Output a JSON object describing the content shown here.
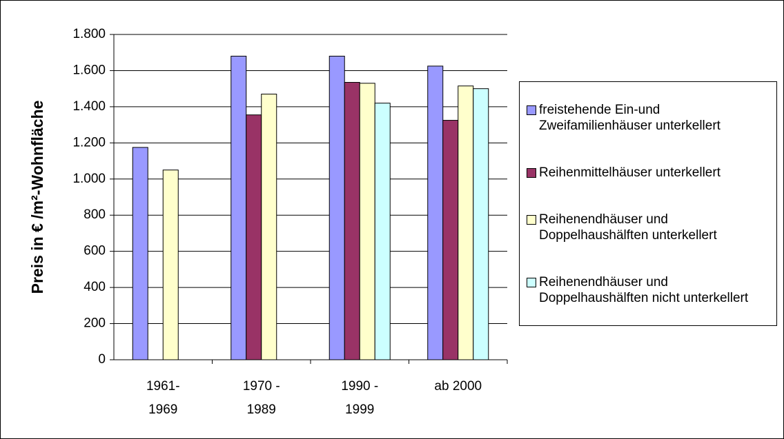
{
  "chart_data": {
    "type": "bar",
    "y_label": "Preis in € /m²-Wohnfläche",
    "categories": [
      "1961-1969",
      "1970 - 1989",
      "1990 - 1999",
      "ab 2000"
    ],
    "series": [
      {
        "name": "freistehende Ein-und Zweifamilienhäuser unterkellert",
        "color": "#9999ff",
        "values": [
          1175,
          1680,
          1680,
          1625
        ]
      },
      {
        "name": "Reihenmittelhäuser unterkellert",
        "color": "#993366",
        "values": [
          null,
          1355,
          1535,
          1325
        ]
      },
      {
        "name": "Reihenendhäuser und Doppelhaushälften unterkellert",
        "color": "#ffffcc",
        "values": [
          1050,
          1470,
          1530,
          1515
        ]
      },
      {
        "name": "Reihenendhäuser und Doppelhaushälften nicht unterkellert",
        "color": "#ccffff",
        "values": [
          null,
          null,
          1420,
          1500
        ]
      }
    ],
    "ylim": [
      0,
      1800
    ],
    "yticks": [
      0,
      200,
      400,
      600,
      800,
      {
        "value": 1000,
        "label": "1.000"
      },
      {
        "value": 1200,
        "label": "1.200"
      },
      {
        "value": 1400,
        "label": "1.400"
      },
      {
        "value": 1600,
        "label": "1.600"
      },
      {
        "value": 1800,
        "label": "1.800"
      }
    ],
    "grid": true
  }
}
